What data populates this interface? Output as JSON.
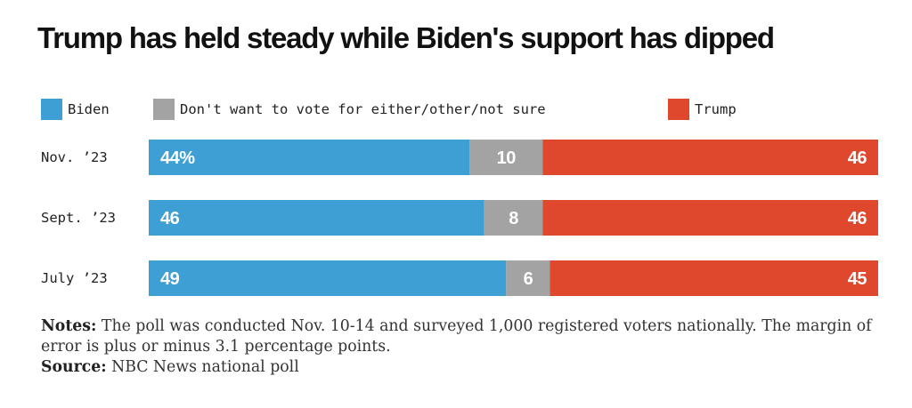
{
  "title": "Trump has held steady while Biden's support has dipped",
  "legend": [
    {
      "label": "Biden",
      "color": "#3d9fd4"
    },
    {
      "label": "Don't want to vote for either/other/not sure",
      "color": "#a3a3a3"
    },
    {
      "label": "Trump",
      "color": "#e0482e"
    }
  ],
  "notes": {
    "notes_label": "Notes:",
    "notes_text": "The poll was conducted Nov. 10-14 and surveyed 1,000 registered voters nationally. The margin of error is plus or minus 3.1 percentage points.",
    "source_label": "Source:",
    "source_text": "NBC News national poll"
  },
  "chart_data": {
    "type": "bar",
    "orientation": "horizontal",
    "stacked": true,
    "percent_stacked": true,
    "categories": [
      "Nov. ’23",
      "Sept. ’23",
      "July ’23"
    ],
    "series": [
      {
        "name": "Biden",
        "color": "#3d9fd4",
        "values": [
          44,
          46,
          49
        ],
        "labels": [
          "44%",
          "46",
          "49"
        ]
      },
      {
        "name": "Don't want to vote for either/other/not sure",
        "color": "#a3a3a3",
        "values": [
          10,
          8,
          6
        ],
        "labels": [
          "10",
          "8",
          "6"
        ]
      },
      {
        "name": "Trump",
        "color": "#e0482e",
        "values": [
          46,
          46,
          45
        ],
        "labels": [
          "46",
          "46",
          "45"
        ]
      }
    ],
    "xlim": [
      0,
      100
    ],
    "grid": false,
    "legend_position": "top-left"
  }
}
